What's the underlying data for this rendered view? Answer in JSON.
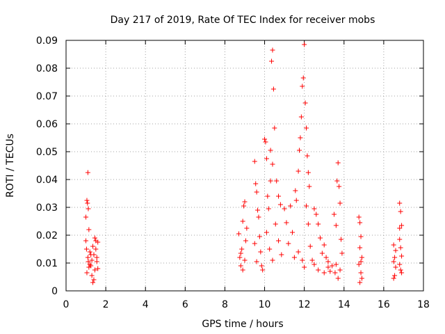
{
  "chart_data": {
    "type": "scatter",
    "title": "Day 217 of 2019, Rate Of TEC Index for receiver mobs",
    "xlabel": "GPS time / hours",
    "ylabel": "ROTI / TECUs",
    "xlim": [
      0,
      18
    ],
    "ylim": [
      0,
      0.09
    ],
    "x_ticks": [
      "0",
      "2",
      "4",
      "6",
      "8",
      "10",
      "12",
      "14",
      "16",
      "18"
    ],
    "y_ticks": [
      "0",
      "0.01",
      "0.02",
      "0.03",
      "0.04",
      "0.05",
      "0.06",
      "0.07",
      "0.08",
      "0.09"
    ],
    "grid": true,
    "marker": "plus",
    "color": "#ff0000",
    "series": [
      {
        "name": "ROTI",
        "points": [
          [
            1.0,
            0.0265
          ],
          [
            1.05,
            0.0325
          ],
          [
            1.08,
            0.0315
          ],
          [
            1.1,
            0.0425
          ],
          [
            1.12,
            0.0295
          ],
          [
            1.15,
            0.022
          ],
          [
            1.0,
            0.018
          ],
          [
            1.03,
            0.015
          ],
          [
            1.1,
            0.012
          ],
          [
            1.2,
            0.014
          ],
          [
            1.25,
            0.009
          ],
          [
            1.3,
            0.011
          ],
          [
            1.35,
            0.016
          ],
          [
            1.4,
            0.013
          ],
          [
            1.45,
            0.019
          ],
          [
            1.5,
            0.018
          ],
          [
            1.55,
            0.012
          ],
          [
            1.6,
            0.008
          ],
          [
            1.35,
            0.003
          ],
          [
            1.4,
            0.004
          ],
          [
            1.3,
            0.0055
          ],
          [
            1.45,
            0.0075
          ],
          [
            1.5,
            0.015
          ],
          [
            1.05,
            0.0065
          ],
          [
            1.15,
            0.0085
          ],
          [
            1.2,
            0.0095
          ],
          [
            1.25,
            0.013
          ],
          [
            1.55,
            0.0105
          ],
          [
            1.6,
            0.0175
          ],
          [
            1.12,
            0.0105
          ],
          [
            8.7,
            0.0205
          ],
          [
            8.75,
            0.012
          ],
          [
            8.8,
            0.009
          ],
          [
            8.85,
            0.015
          ],
          [
            8.9,
            0.025
          ],
          [
            8.95,
            0.0305
          ],
          [
            9.0,
            0.032
          ],
          [
            9.05,
            0.018
          ],
          [
            9.1,
            0.0225
          ],
          [
            8.9,
            0.0075
          ],
          [
            9.0,
            0.011
          ],
          [
            8.8,
            0.0135
          ],
          [
            9.5,
            0.0465
          ],
          [
            9.55,
            0.0385
          ],
          [
            9.6,
            0.0355
          ],
          [
            9.65,
            0.029
          ],
          [
            9.7,
            0.0265
          ],
          [
            9.75,
            0.0195
          ],
          [
            9.8,
            0.014
          ],
          [
            9.85,
            0.009
          ],
          [
            9.9,
            0.0075
          ],
          [
            9.5,
            0.017
          ],
          [
            9.6,
            0.0105
          ],
          [
            10.0,
            0.0545
          ],
          [
            10.05,
            0.0535
          ],
          [
            10.1,
            0.0475
          ],
          [
            10.15,
            0.034
          ],
          [
            10.2,
            0.0295
          ],
          [
            10.3,
            0.0395
          ],
          [
            10.35,
            0.0825
          ],
          [
            10.4,
            0.0865
          ],
          [
            10.45,
            0.0725
          ],
          [
            10.5,
            0.0585
          ],
          [
            10.3,
            0.0505
          ],
          [
            10.4,
            0.0455
          ],
          [
            10.6,
            0.0395
          ],
          [
            10.7,
            0.034
          ],
          [
            10.8,
            0.031
          ],
          [
            10.1,
            0.021
          ],
          [
            10.25,
            0.015
          ],
          [
            10.4,
            0.011
          ],
          [
            10.55,
            0.024
          ],
          [
            10.7,
            0.018
          ],
          [
            10.85,
            0.013
          ],
          [
            11.0,
            0.0295
          ],
          [
            11.1,
            0.0245
          ],
          [
            11.2,
            0.017
          ],
          [
            11.3,
            0.0305
          ],
          [
            11.4,
            0.021
          ],
          [
            11.5,
            0.012
          ],
          [
            11.55,
            0.036
          ],
          [
            11.6,
            0.0325
          ],
          [
            11.7,
            0.043
          ],
          [
            11.75,
            0.0505
          ],
          [
            11.8,
            0.055
          ],
          [
            11.85,
            0.0625
          ],
          [
            11.9,
            0.0735
          ],
          [
            11.95,
            0.0765
          ],
          [
            12.0,
            0.0885
          ],
          [
            12.05,
            0.0675
          ],
          [
            12.1,
            0.0585
          ],
          [
            12.15,
            0.0485
          ],
          [
            12.2,
            0.0425
          ],
          [
            12.25,
            0.0375
          ],
          [
            12.1,
            0.0305
          ],
          [
            12.2,
            0.024
          ],
          [
            11.7,
            0.014
          ],
          [
            11.9,
            0.011
          ],
          [
            12.0,
            0.0085
          ],
          [
            12.3,
            0.016
          ],
          [
            12.4,
            0.011
          ],
          [
            12.5,
            0.0295
          ],
          [
            12.6,
            0.0275
          ],
          [
            12.7,
            0.024
          ],
          [
            12.8,
            0.019
          ],
          [
            12.9,
            0.0135
          ],
          [
            13.0,
            0.0165
          ],
          [
            13.1,
            0.012
          ],
          [
            13.2,
            0.0085
          ],
          [
            13.3,
            0.007
          ],
          [
            13.4,
            0.009
          ],
          [
            12.5,
            0.0095
          ],
          [
            12.7,
            0.0075
          ],
          [
            13.0,
            0.0065
          ],
          [
            13.2,
            0.0105
          ],
          [
            13.5,
            0.0275
          ],
          [
            13.6,
            0.0235
          ],
          [
            13.65,
            0.0395
          ],
          [
            13.7,
            0.046
          ],
          [
            13.75,
            0.0375
          ],
          [
            13.8,
            0.0315
          ],
          [
            13.85,
            0.0185
          ],
          [
            13.9,
            0.0135
          ],
          [
            13.6,
            0.0095
          ],
          [
            13.8,
            0.0075
          ],
          [
            13.55,
            0.0065
          ],
          [
            13.7,
            0.0045
          ],
          [
            14.75,
            0.0265
          ],
          [
            14.8,
            0.0245
          ],
          [
            14.85,
            0.0195
          ],
          [
            14.8,
            0.0155
          ],
          [
            14.9,
            0.012
          ],
          [
            14.75,
            0.0095
          ],
          [
            14.85,
            0.0065
          ],
          [
            14.8,
            0.003
          ],
          [
            14.9,
            0.0045
          ],
          [
            14.85,
            0.0105
          ],
          [
            16.5,
            0.0165
          ],
          [
            16.55,
            0.012
          ],
          [
            16.6,
            0.0085
          ],
          [
            16.55,
            0.0055
          ],
          [
            16.5,
            0.0045
          ],
          [
            16.6,
            0.0145
          ],
          [
            16.5,
            0.0105
          ],
          [
            16.8,
            0.0315
          ],
          [
            16.85,
            0.0285
          ],
          [
            16.9,
            0.0235
          ],
          [
            16.8,
            0.0185
          ],
          [
            16.85,
            0.0155
          ],
          [
            16.9,
            0.0125
          ],
          [
            16.8,
            0.0095
          ],
          [
            16.85,
            0.0075
          ],
          [
            16.9,
            0.0065
          ],
          [
            16.8,
            0.0225
          ]
        ]
      }
    ]
  }
}
